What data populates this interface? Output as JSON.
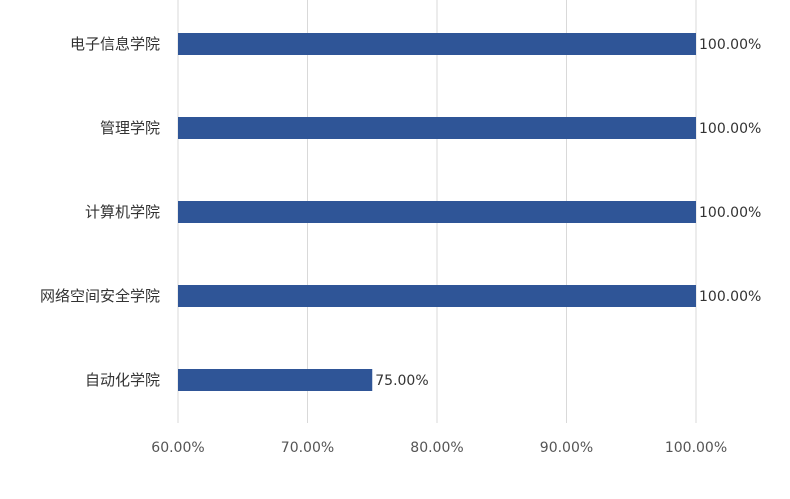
{
  "chart_data": {
    "type": "bar",
    "orientation": "horizontal",
    "categories": [
      "电子信息学院",
      "管理学院",
      "计算机学院",
      "网络空间安全学院",
      "自动化学院"
    ],
    "values": [
      100.0,
      100.0,
      100.0,
      100.0,
      75.0
    ],
    "value_labels": [
      "100.00%",
      "100.00%",
      "100.00%",
      "100.00%",
      "75.00%"
    ],
    "xlim": [
      60,
      100
    ],
    "x_ticks": [
      60,
      70,
      80,
      90,
      100
    ],
    "x_tick_labels": [
      "60.00%",
      "70.00%",
      "80.00%",
      "90.00%",
      "100.00%"
    ],
    "grid": "vertical",
    "legend": "none",
    "bar_color": "#2f5597"
  }
}
